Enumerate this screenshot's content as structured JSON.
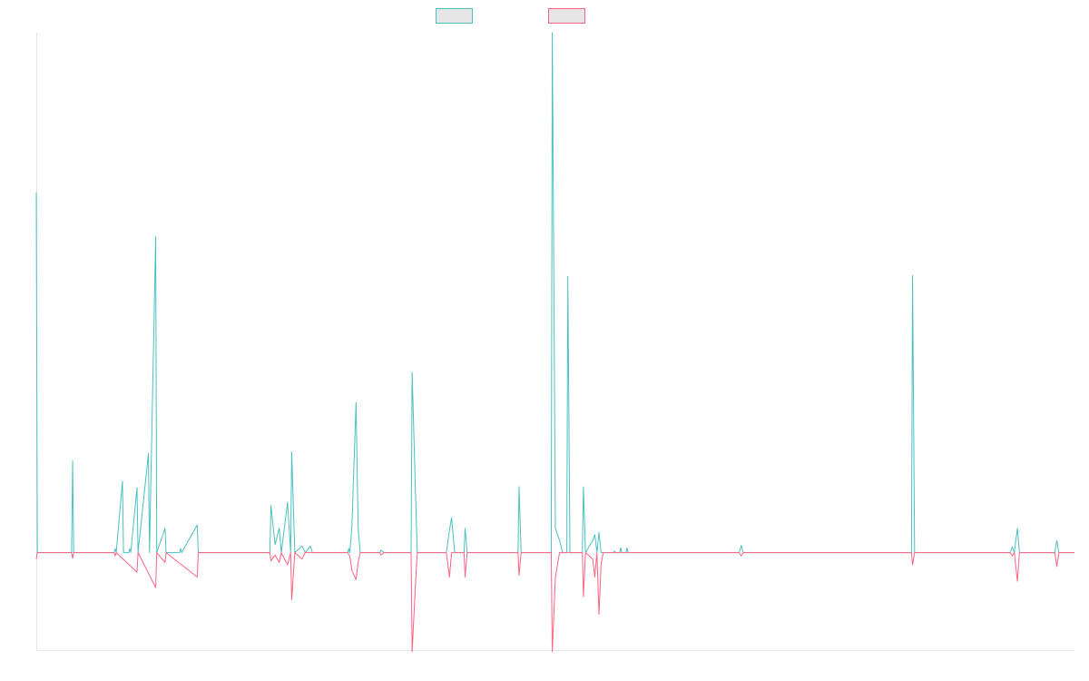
{
  "chart_data": {
    "type": "line",
    "title": "",
    "xlabel": "",
    "ylabel": "",
    "legend": {
      "placement": "top-center",
      "show_labels": false
    },
    "grid": false,
    "xlim": [
      0,
      1000
    ],
    "ylim": [
      -120,
      640
    ],
    "baseline": 0,
    "series": [
      {
        "name": "",
        "color": "#4bc0c0",
        "fill": "#e6e6e6",
        "points": [
          [
            0,
            443
          ],
          [
            1,
            0
          ],
          [
            12,
            0
          ],
          [
            34,
            0
          ],
          [
            35,
            113
          ],
          [
            36,
            0
          ],
          [
            75,
            0
          ],
          [
            76,
            5
          ],
          [
            77,
            0
          ],
          [
            83,
            88
          ],
          [
            84,
            0
          ],
          [
            89,
            0
          ],
          [
            90,
            5
          ],
          [
            91,
            0
          ],
          [
            97,
            80
          ],
          [
            98,
            0
          ],
          [
            108,
            122
          ],
          [
            109,
            0
          ],
          [
            115,
            389
          ],
          [
            116,
            0
          ],
          [
            124,
            30
          ],
          [
            125,
            0
          ],
          [
            138,
            0
          ],
          [
            139,
            5
          ],
          [
            140,
            0
          ],
          [
            155,
            34
          ],
          [
            156,
            0
          ],
          [
            225,
            0
          ],
          [
            226,
            58
          ],
          [
            230,
            10
          ],
          [
            234,
            30
          ],
          [
            236,
            0
          ],
          [
            242,
            62
          ],
          [
            245,
            0
          ],
          [
            246,
            124
          ],
          [
            249,
            0
          ],
          [
            256,
            8
          ],
          [
            259,
            0
          ],
          [
            264,
            8
          ],
          [
            266,
            0
          ],
          [
            300,
            0
          ],
          [
            301,
            5
          ],
          [
            302,
            0
          ],
          [
            304,
            32
          ],
          [
            308,
            185
          ],
          [
            310,
            30
          ],
          [
            312,
            0
          ],
          [
            331,
            0
          ],
          [
            332,
            3
          ],
          [
            335,
            0
          ],
          [
            361,
            0
          ],
          [
            362,
            222
          ],
          [
            366,
            40
          ],
          [
            367,
            0
          ],
          [
            395,
            0
          ],
          [
            398,
            28
          ],
          [
            400,
            43
          ],
          [
            403,
            0
          ],
          [
            412,
            0
          ],
          [
            413,
            30
          ],
          [
            415,
            0
          ],
          [
            464,
            0
          ],
          [
            465,
            81
          ],
          [
            467,
            0
          ],
          [
            496,
            0
          ],
          [
            497,
            640
          ],
          [
            500,
            30
          ],
          [
            504,
            15
          ],
          [
            507,
            0
          ],
          [
            511,
            0
          ],
          [
            512,
            340
          ],
          [
            514,
            0
          ],
          [
            526,
            0
          ],
          [
            527,
            81
          ],
          [
            529,
            0
          ],
          [
            536,
            15
          ],
          [
            538,
            22
          ],
          [
            540,
            0
          ],
          [
            542,
            25
          ],
          [
            544,
            0
          ],
          [
            556,
            0
          ],
          [
            557,
            2
          ],
          [
            558,
            0
          ],
          [
            562,
            0
          ],
          [
            563,
            6
          ],
          [
            564,
            0
          ],
          [
            568,
            0
          ],
          [
            569,
            6
          ],
          [
            570,
            0
          ],
          [
            677,
            0
          ],
          [
            679,
            9
          ],
          [
            681,
            0
          ],
          [
            843,
            0
          ],
          [
            844,
            341
          ],
          [
            846,
            0
          ],
          [
            938,
            0
          ],
          [
            940,
            7
          ],
          [
            942,
            0
          ],
          [
            945,
            30
          ],
          [
            947,
            0
          ],
          [
            981,
            0
          ],
          [
            983,
            15
          ],
          [
            985,
            0
          ],
          [
            1000,
            0
          ]
        ]
      },
      {
        "name": "",
        "color": "#ff6384",
        "fill": "#e6e6e6",
        "points": [
          [
            0,
            -8
          ],
          [
            1,
            0
          ],
          [
            12,
            0
          ],
          [
            34,
            0
          ],
          [
            35,
            -7
          ],
          [
            36,
            0
          ],
          [
            75,
            0
          ],
          [
            76,
            -4
          ],
          [
            77,
            0
          ],
          [
            97,
            -24
          ],
          [
            98,
            0
          ],
          [
            115,
            -43
          ],
          [
            116,
            0
          ],
          [
            124,
            -12
          ],
          [
            125,
            0
          ],
          [
            155,
            -30
          ],
          [
            156,
            0
          ],
          [
            225,
            0
          ],
          [
            226,
            -10
          ],
          [
            230,
            -3
          ],
          [
            234,
            -12
          ],
          [
            236,
            0
          ],
          [
            242,
            -15
          ],
          [
            245,
            0
          ],
          [
            246,
            -58
          ],
          [
            249,
            0
          ],
          [
            256,
            -8
          ],
          [
            259,
            0
          ],
          [
            300,
            0
          ],
          [
            302,
            -4
          ],
          [
            304,
            -22
          ],
          [
            308,
            -33
          ],
          [
            310,
            -12
          ],
          [
            312,
            0
          ],
          [
            331,
            0
          ],
          [
            332,
            -3
          ],
          [
            335,
            0
          ],
          [
            361,
            0
          ],
          [
            362,
            -122
          ],
          [
            366,
            -20
          ],
          [
            367,
            0
          ],
          [
            395,
            0
          ],
          [
            398,
            -30
          ],
          [
            400,
            0
          ],
          [
            412,
            0
          ],
          [
            413,
            -30
          ],
          [
            415,
            0
          ],
          [
            464,
            0
          ],
          [
            465,
            -28
          ],
          [
            467,
            0
          ],
          [
            496,
            0
          ],
          [
            497,
            -122
          ],
          [
            500,
            -30
          ],
          [
            504,
            0
          ],
          [
            526,
            0
          ],
          [
            527,
            -54
          ],
          [
            529,
            0
          ],
          [
            536,
            -8
          ],
          [
            538,
            -30
          ],
          [
            540,
            0
          ],
          [
            542,
            -76
          ],
          [
            544,
            -15
          ],
          [
            546,
            0
          ],
          [
            677,
            0
          ],
          [
            679,
            -4
          ],
          [
            681,
            0
          ],
          [
            843,
            0
          ],
          [
            844,
            -15
          ],
          [
            846,
            0
          ],
          [
            938,
            0
          ],
          [
            940,
            -4
          ],
          [
            942,
            0
          ],
          [
            945,
            -35
          ],
          [
            947,
            0
          ],
          [
            981,
            0
          ],
          [
            983,
            -17
          ],
          [
            985,
            0
          ],
          [
            1000,
            0
          ]
        ]
      }
    ]
  }
}
